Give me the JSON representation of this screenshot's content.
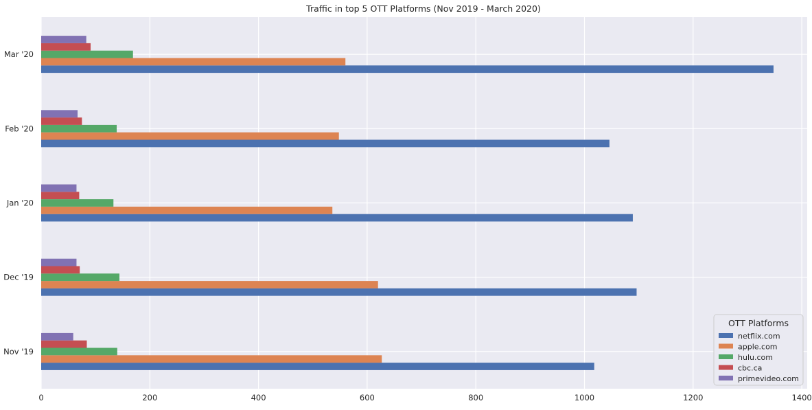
{
  "chart_data": {
    "type": "bar",
    "orientation": "horizontal",
    "title": "Traffic in top 5 OTT Platforms (Nov 2019 - March 2020)",
    "xlabel": "",
    "ylabel": "",
    "xlim": [
      0,
      1410
    ],
    "xticks": [
      0,
      200,
      400,
      600,
      800,
      1000,
      1200,
      1400
    ],
    "categories": [
      "Nov '19",
      "Dec '19",
      "Jan '20",
      "Feb '20",
      "Mar '20"
    ],
    "series": [
      {
        "name": "netflix.com",
        "color": "#4c72b0",
        "values": [
          1018,
          1096,
          1089,
          1046,
          1348
        ]
      },
      {
        "name": "apple.com",
        "color": "#dd8452",
        "values": [
          627,
          620,
          536,
          548,
          560
        ]
      },
      {
        "name": "hulu.com",
        "color": "#55a868",
        "values": [
          140,
          144,
          133,
          139,
          169
        ]
      },
      {
        "name": "cbc.ca",
        "color": "#c44e52",
        "values": [
          84,
          71,
          70,
          75,
          91
        ]
      },
      {
        "name": "primevideo.com",
        "color": "#8172b3",
        "values": [
          59,
          65,
          65,
          67,
          83
        ]
      }
    ],
    "grid": true,
    "legend": {
      "title": "OTT Platforms",
      "placement": "bottom-right"
    },
    "background": "#eaeaf2"
  }
}
